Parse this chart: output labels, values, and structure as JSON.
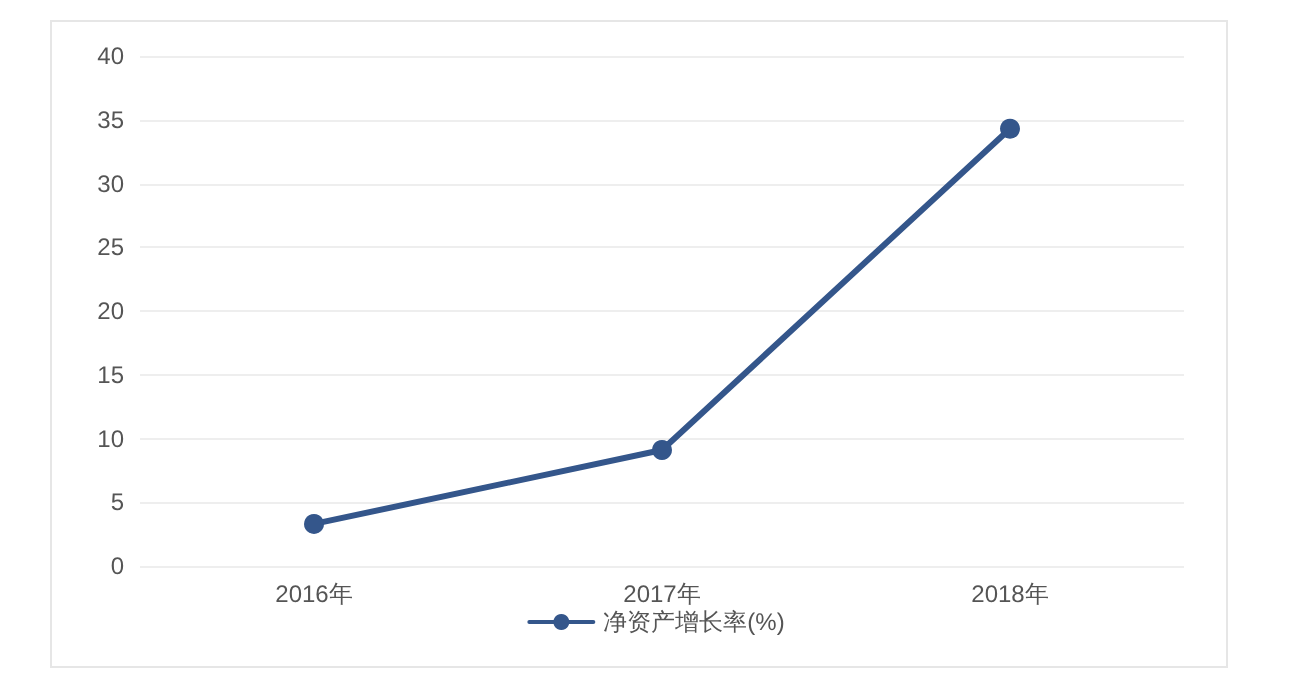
{
  "chart_data": {
    "type": "line",
    "categories": [
      "2016年",
      "2017年",
      "2018年"
    ],
    "series": [
      {
        "name": "净资产增长率(%)",
        "color": "#34568b",
        "values": [
          3.3,
          9.1,
          34.3
        ]
      }
    ],
    "ylim": [
      0,
      40
    ],
    "yticks": [
      0,
      5,
      10,
      15,
      20,
      25,
      30,
      35,
      40
    ],
    "grid": "y",
    "legend": "bottom",
    "marker": "circle",
    "line_style": "solid"
  }
}
